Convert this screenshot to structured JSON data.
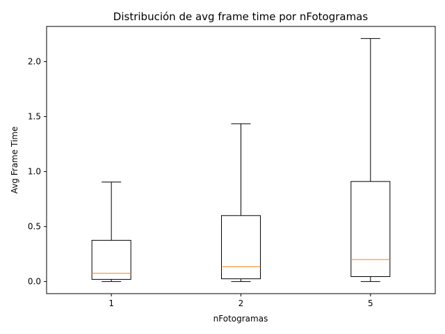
{
  "chart_data": {
    "type": "box",
    "title": "Distribución de avg frame time por nFotogramas",
    "xlabel": "nFotogramas",
    "ylabel": "Avg Frame Time",
    "ylim": [
      -0.11,
      2.32
    ],
    "yticks": [
      {
        "value": 0.0,
        "label": "0.0"
      },
      {
        "value": 0.5,
        "label": "0.5"
      },
      {
        "value": 1.0,
        "label": "1.0"
      },
      {
        "value": 1.5,
        "label": "1.5"
      },
      {
        "value": 2.0,
        "label": "2.0"
      }
    ],
    "grid": false,
    "categories": [
      "1",
      "2",
      "5"
    ],
    "boxes": [
      {
        "category": "1",
        "whisker_low": 0.0,
        "q1": 0.02,
        "median": 0.075,
        "q3": 0.375,
        "whisker_high": 0.905
      },
      {
        "category": "2",
        "whisker_low": 0.0,
        "q1": 0.025,
        "median": 0.135,
        "q3": 0.6,
        "whisker_high": 1.435
      },
      {
        "category": "5",
        "whisker_low": 0.0,
        "q1": 0.045,
        "median": 0.2,
        "q3": 0.91,
        "whisker_high": 2.21
      }
    ],
    "colors": {
      "box": "#000000",
      "median": "#ff7f0e",
      "axes": "#000000"
    }
  }
}
